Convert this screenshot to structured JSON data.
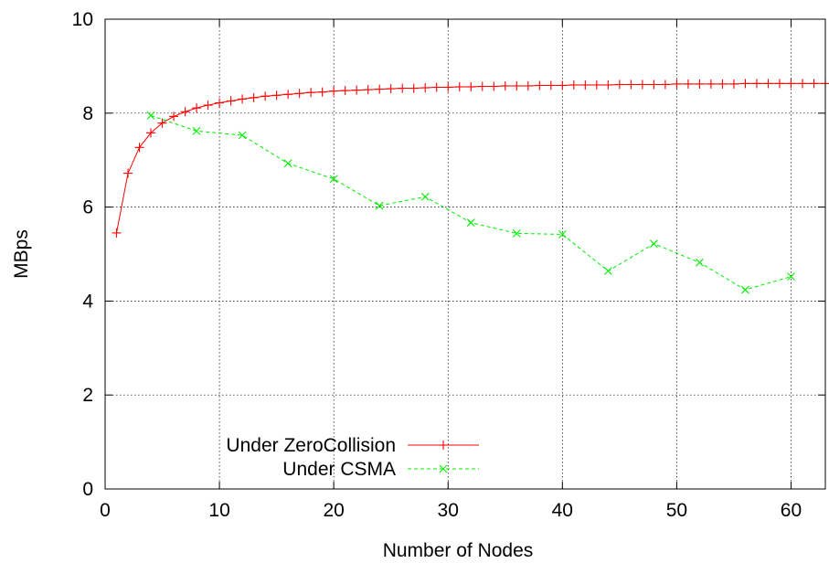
{
  "chart_data": {
    "type": "line",
    "title": "",
    "xlabel": "Number of Nodes",
    "ylabel": "MBps",
    "xlim": [
      0,
      63
    ],
    "ylim": [
      0,
      10
    ],
    "x_ticks": [
      0,
      10,
      20,
      30,
      40,
      50,
      60
    ],
    "y_ticks": [
      0,
      2,
      4,
      6,
      8,
      10
    ],
    "grid": true,
    "legend_position": "bottom-left",
    "series": [
      {
        "name": "Under ZeroCollision",
        "color": "#ff0000",
        "marker": "plus",
        "line_style": "solid",
        "x": [
          1,
          2,
          3,
          4,
          5,
          6,
          7,
          8,
          9,
          10,
          11,
          12,
          13,
          14,
          15,
          16,
          17,
          18,
          19,
          20,
          21,
          22,
          23,
          24,
          25,
          26,
          27,
          28,
          29,
          30,
          31,
          32,
          33,
          34,
          35,
          36,
          37,
          38,
          39,
          40,
          41,
          42,
          43,
          44,
          45,
          46,
          47,
          48,
          49,
          50,
          51,
          52,
          53,
          54,
          55,
          56,
          57,
          58,
          59,
          60,
          61,
          62,
          63
        ],
        "values": [
          5.45,
          6.72,
          7.27,
          7.58,
          7.79,
          7.93,
          8.03,
          8.11,
          8.17,
          8.22,
          8.26,
          8.3,
          8.33,
          8.36,
          8.38,
          8.4,
          8.42,
          8.44,
          8.45,
          8.47,
          8.48,
          8.49,
          8.5,
          8.51,
          8.52,
          8.53,
          8.53,
          8.54,
          8.55,
          8.55,
          8.56,
          8.56,
          8.57,
          8.57,
          8.58,
          8.58,
          8.58,
          8.59,
          8.59,
          8.59,
          8.6,
          8.6,
          8.6,
          8.6,
          8.61,
          8.61,
          8.61,
          8.61,
          8.61,
          8.62,
          8.62,
          8.62,
          8.62,
          8.62,
          8.62,
          8.63,
          8.63,
          8.63,
          8.63,
          8.63,
          8.63,
          8.63,
          8.63
        ]
      },
      {
        "name": "Under CSMA",
        "color": "#00ee00",
        "marker": "cross",
        "line_style": "dashed",
        "x": [
          4,
          8,
          12,
          16,
          20,
          24,
          28,
          32,
          36,
          40,
          44,
          48,
          52,
          56,
          60
        ],
        "values": [
          7.95,
          7.62,
          7.53,
          6.93,
          6.6,
          6.03,
          6.22,
          5.67,
          5.44,
          5.42,
          4.64,
          5.22,
          4.82,
          4.24,
          4.52
        ]
      }
    ]
  }
}
